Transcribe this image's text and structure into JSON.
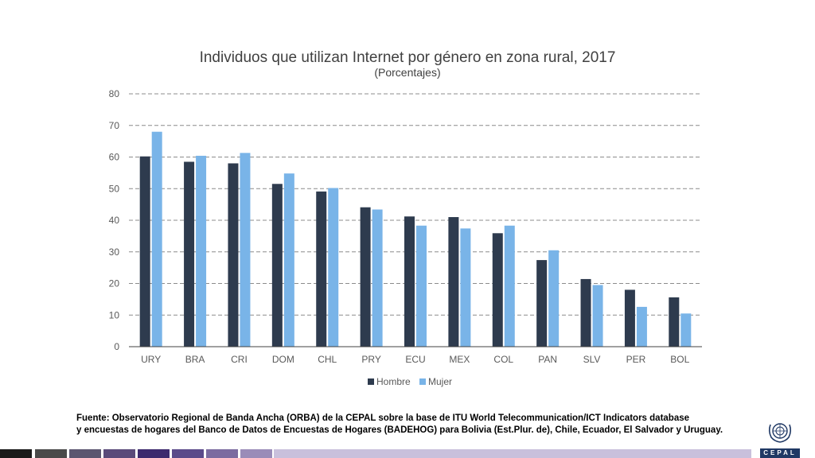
{
  "chart_data": {
    "type": "bar",
    "title": "Individuos que utilizan Internet por género en zona rural, 2017",
    "subtitle": "(Porcentajes)",
    "categories": [
      "URY",
      "BRA",
      "CRI",
      "DOM",
      "CHL",
      "PRY",
      "ECU",
      "MEX",
      "COL",
      "PAN",
      "SLV",
      "PER",
      "BOL"
    ],
    "series": [
      {
        "name": "Hombre",
        "color": "#2e3b4e",
        "values": [
          60.2,
          58.5,
          58.0,
          51.5,
          49.1,
          44.1,
          41.2,
          41.0,
          35.9,
          27.4,
          21.4,
          18.0,
          15.6
        ]
      },
      {
        "name": "Mujer",
        "color": "#79b4e8",
        "values": [
          68.0,
          60.4,
          61.3,
          54.8,
          50.2,
          43.4,
          38.3,
          37.4,
          38.3,
          30.5,
          19.5,
          12.6,
          10.5
        ]
      }
    ],
    "ylim": [
      0,
      80
    ],
    "yticks": [
      0,
      10,
      20,
      30,
      40,
      50,
      60,
      70,
      80
    ],
    "grid": true,
    "legend_position": "bottom"
  },
  "source": {
    "line1": "Fuente: Observatorio Regional de Banda Ancha (ORBA) de la CEPAL sobre la base de ITU World Telecommunication/ICT Indicators database",
    "line2": "y encuestas de hogares del Banco de Datos de Encuestas de Hogares (BADEHOG) para Bolivia (Est.Plur. de), Chile, Ecuador, El Salvador y Uruguay."
  },
  "logo": {
    "icon": "un-emblem-icon",
    "caption": "NACIONES UNIDAS",
    "text": "CEPAL",
    "color": "#1f3864"
  },
  "footer_stripe_colors": [
    "#1a1a1a",
    "#4a4a4a",
    "#5b5670",
    "#5a4a7a",
    "#3d2a6e",
    "#5b4a8a",
    "#7b6ba0",
    "#9a8cb8",
    "#c9c0dc"
  ]
}
